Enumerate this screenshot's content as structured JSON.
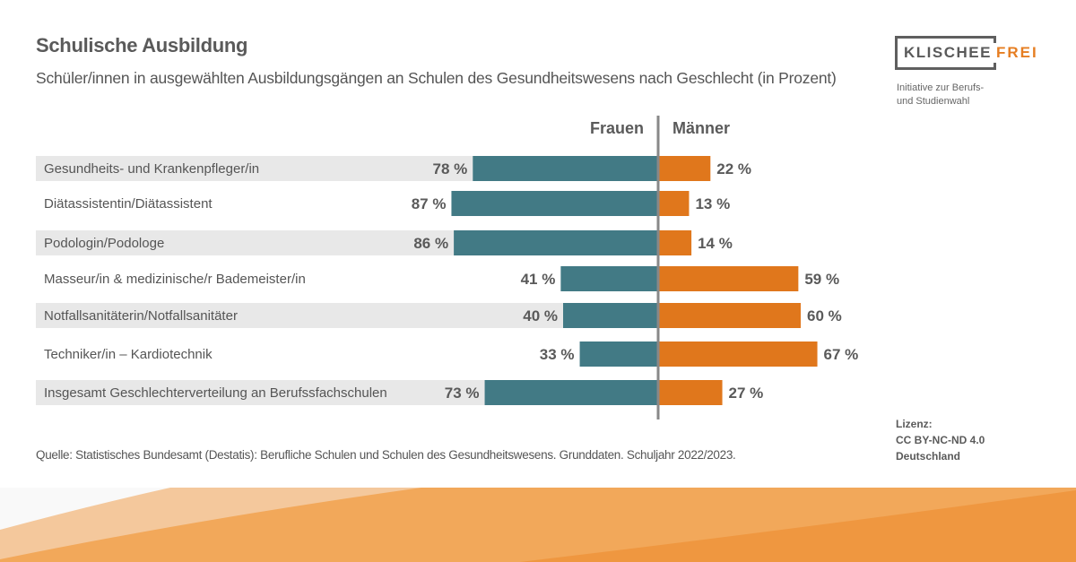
{
  "header": {
    "title": "Schulische Ausbildung",
    "subtitle": "Schüler/innen in ausgewählten Ausbildungsgängen an Schulen des Gesundheitswesens nach Geschlecht (in Prozent)"
  },
  "logo": {
    "word1": "KLISCHEE",
    "word2": "FREI",
    "tagline_line1": "Initiative zur Berufs-",
    "tagline_line2": "und Studienwahl"
  },
  "colors": {
    "frauen": "#427a85",
    "maenner": "#e0771c",
    "band": "#e8e8e8",
    "axis": "#888888",
    "text": "#555555",
    "footer_light": "#f4c89c",
    "footer_mid": "#f2a85a",
    "footer_dark": "#ef9740"
  },
  "chart_data": {
    "type": "bar",
    "orientation": "horizontal-diverging",
    "title": "Schulische Ausbildung",
    "subtitle": "Schüler/innen in ausgewählten Ausbildungsgängen an Schulen des Gesundheitswesens nach Geschlecht (in Prozent)",
    "xlabel": "",
    "ylabel": "",
    "xlim": [
      0,
      100
    ],
    "unit": "%",
    "grid": false,
    "legend": "top-center",
    "categories": [
      "Gesundheits- und Krankenpfleger/in",
      "Diätassistentin/Diätassistent",
      "Podologin/Podologe",
      "Masseur/in & medizinische/r Bademeister/in",
      "Notfallsanitäterin/Notfallsanitäter",
      "Techniker/in – Kardiotechnik",
      "Insgesamt Geschlechterverteilung an Berufssfachschulen"
    ],
    "series": [
      {
        "name": "Frauen",
        "side": "left",
        "values": [
          78,
          87,
          86,
          41,
          40,
          33,
          73
        ]
      },
      {
        "name": "Männer",
        "side": "right",
        "values": [
          22,
          13,
          14,
          59,
          60,
          67,
          27
        ]
      }
    ],
    "value_labels": {
      "Frauen": [
        "78 %",
        "87 %",
        "86 %",
        "41 %",
        "40 %",
        "33 %",
        "73 %"
      ],
      "Männer": [
        "22 %",
        "13 %",
        "14 %",
        "59 %",
        "60 %",
        "67 %",
        "27 %"
      ]
    },
    "banded_rows": [
      0,
      2,
      4,
      6
    ]
  },
  "footer": {
    "source": "Quelle: Statistisches Bundesamt (Destatis): Berufliche Schulen und Schulen des Gesundheitswesens. Grunddaten. Schuljahr 2022/2023.",
    "license_label": "Lizenz:",
    "license_name": "CC BY-NC-ND 4.0",
    "license_region": "Deutschland"
  }
}
